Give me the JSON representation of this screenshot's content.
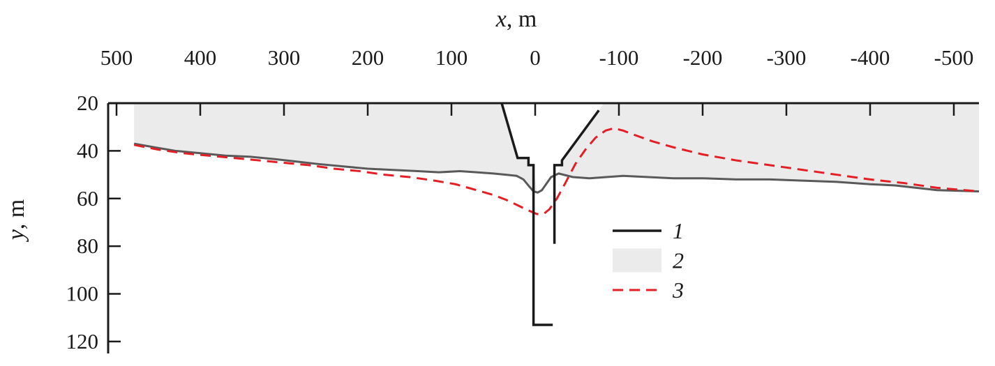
{
  "page": {
    "background": "#ffffff"
  },
  "chart_data": {
    "type": "line",
    "title": "",
    "description": "Cross-section depth profile: y (depth, m, increasing downward) vs x (m, axis reversed, 500 left to -500 right). Axis drawn on top and left.",
    "xlabel": {
      "var": "x",
      "unit": ", m"
    },
    "ylabel": {
      "var": "y",
      "unit": ", m"
    },
    "x_ticks": [
      500,
      400,
      300,
      200,
      100,
      0,
      -100,
      -200,
      -300,
      -400,
      -500
    ],
    "y_ticks": [
      20,
      40,
      60,
      80,
      100,
      120
    ],
    "xlim": [
      510,
      -530
    ],
    "ylim": [
      20,
      125
    ],
    "x_axis_reversed": true,
    "y_axis_inverted": true,
    "grid": false,
    "axis_color": "#1a1a1a",
    "legend": {
      "position": "inside-center-right",
      "items": [
        {
          "label": "1",
          "swatch": "line",
          "color": "#1a1a1a"
        },
        {
          "label": "2",
          "swatch": "area",
          "color": "#ebebeb"
        },
        {
          "label": "3",
          "swatch": "dashed",
          "color": "#e31e24"
        }
      ]
    },
    "series": [
      {
        "name": "1",
        "type": "segments",
        "color": "#1a1a1a",
        "width": 3.5,
        "segments": [
          [
            [
              40,
              20
            ],
            [
              21,
              43
            ],
            [
              8,
              43
            ],
            [
              8,
              46
            ],
            [
              2,
              46
            ],
            [
              2,
              113
            ],
            [
              -21,
              113
            ]
          ],
          [
            [
              -23,
              79
            ],
            [
              -23,
              46
            ],
            [
              -32,
              46
            ],
            [
              -32,
              44
            ],
            [
              -76,
              23
            ]
          ]
        ]
      },
      {
        "name": "2",
        "type": "area",
        "fill": "#ebebeb",
        "line_color": "#595959",
        "width": 3,
        "upper_y": 20,
        "points": [
          [
            479,
            37
          ],
          [
            455,
            38.5
          ],
          [
            430,
            40
          ],
          [
            400,
            41
          ],
          [
            370,
            42
          ],
          [
            340,
            42.5
          ],
          [
            310,
            43.5
          ],
          [
            285,
            44.5
          ],
          [
            260,
            45.5
          ],
          [
            230,
            46.5
          ],
          [
            200,
            47.5
          ],
          [
            170,
            48
          ],
          [
            140,
            48.5
          ],
          [
            115,
            49
          ],
          [
            90,
            48.5
          ],
          [
            70,
            49
          ],
          [
            50,
            49.5
          ],
          [
            35,
            50
          ],
          [
            22,
            50.5
          ],
          [
            14,
            52
          ],
          [
            7,
            55
          ],
          [
            2,
            57
          ],
          [
            -3,
            57.5
          ],
          [
            -8,
            56.5
          ],
          [
            -13,
            54
          ],
          [
            -19,
            51
          ],
          [
            -28,
            49.5
          ],
          [
            -45,
            51
          ],
          [
            -65,
            51.5
          ],
          [
            -85,
            51
          ],
          [
            -105,
            50.5
          ],
          [
            -135,
            51
          ],
          [
            -165,
            51.5
          ],
          [
            -200,
            51.5
          ],
          [
            -240,
            52
          ],
          [
            -280,
            52
          ],
          [
            -320,
            52.5
          ],
          [
            -360,
            53
          ],
          [
            -400,
            54
          ],
          [
            -430,
            54.5
          ],
          [
            -455,
            55.5
          ],
          [
            -480,
            56.5
          ],
          [
            -530,
            57
          ]
        ]
      },
      {
        "name": "3",
        "type": "line",
        "style": "dashed",
        "color": "#e31e24",
        "width": 3,
        "dash": "15 9",
        "points": [
          [
            479,
            37.5
          ],
          [
            450,
            39.5
          ],
          [
            420,
            41
          ],
          [
            390,
            42
          ],
          [
            360,
            43
          ],
          [
            330,
            44
          ],
          [
            300,
            45
          ],
          [
            270,
            46
          ],
          [
            240,
            47.5
          ],
          [
            210,
            48.5
          ],
          [
            180,
            50
          ],
          [
            150,
            51
          ],
          [
            120,
            52.5
          ],
          [
            95,
            54
          ],
          [
            70,
            56.5
          ],
          [
            50,
            58.5
          ],
          [
            35,
            60.5
          ],
          [
            20,
            63
          ],
          [
            8,
            65
          ],
          [
            -2,
            66.5
          ],
          [
            -10,
            66.5
          ],
          [
            -17,
            64.5
          ],
          [
            -26,
            60
          ],
          [
            -36,
            53.5
          ],
          [
            -48,
            45.5
          ],
          [
            -60,
            39.5
          ],
          [
            -72,
            34.5
          ],
          [
            -84,
            31.5
          ],
          [
            -94,
            30.5
          ],
          [
            -105,
            31.5
          ],
          [
            -120,
            33.5
          ],
          [
            -140,
            36
          ],
          [
            -165,
            38.5
          ],
          [
            -200,
            41.5
          ],
          [
            -240,
            44
          ],
          [
            -280,
            46
          ],
          [
            -320,
            48
          ],
          [
            -360,
            50
          ],
          [
            -400,
            52
          ],
          [
            -440,
            53.5
          ],
          [
            -480,
            55.5
          ],
          [
            -530,
            57
          ]
        ]
      }
    ],
    "white_notch": [
      [
        40,
        20
      ],
      [
        21,
        43
      ],
      [
        8,
        43
      ],
      [
        8,
        46
      ],
      [
        2,
        46
      ],
      [
        -2,
        57
      ],
      [
        -8,
        56.5
      ],
      [
        -13,
        54
      ],
      [
        -19,
        51
      ],
      [
        -28,
        49
      ],
      [
        -32,
        45
      ],
      [
        -76,
        23
      ],
      [
        -82,
        20
      ]
    ]
  }
}
